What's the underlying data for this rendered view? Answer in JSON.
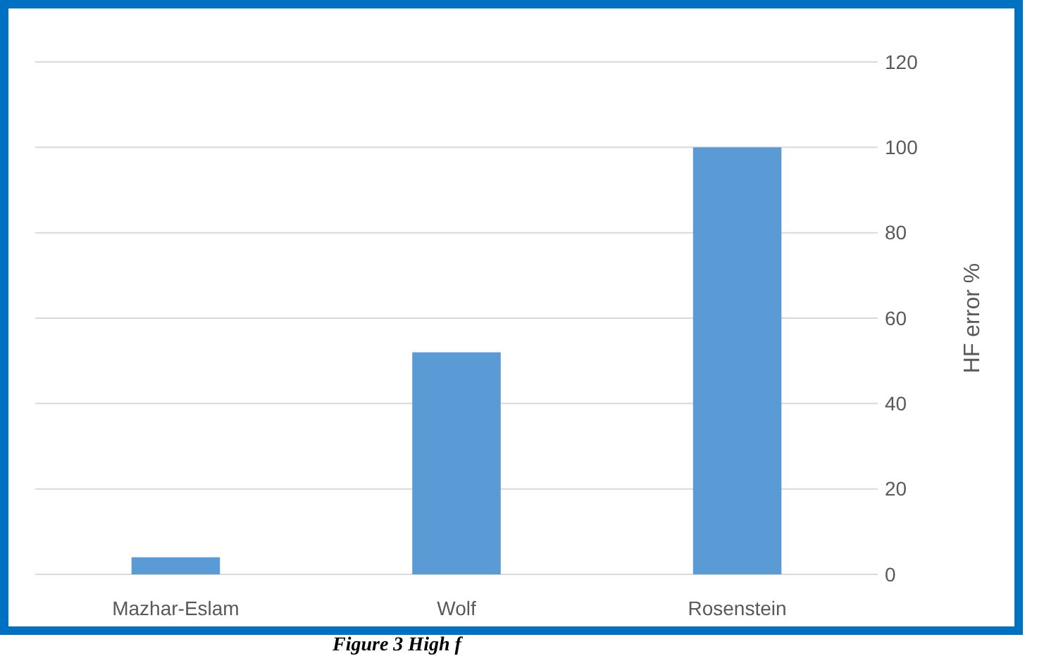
{
  "chart_data": {
    "type": "bar",
    "ylabel": "HF error %",
    "categories": [
      "Mazhar-Eslam",
      "Wolf",
      "Rosenstein"
    ],
    "values": [
      4,
      52,
      100
    ],
    "color": "#5b9bd5",
    "ylim": [
      0,
      120
    ],
    "yticks": [
      0,
      20,
      40,
      60,
      80,
      100,
      120
    ],
    "grid": "y",
    "annotations": [
      "Figure 3 High f"
    ]
  }
}
